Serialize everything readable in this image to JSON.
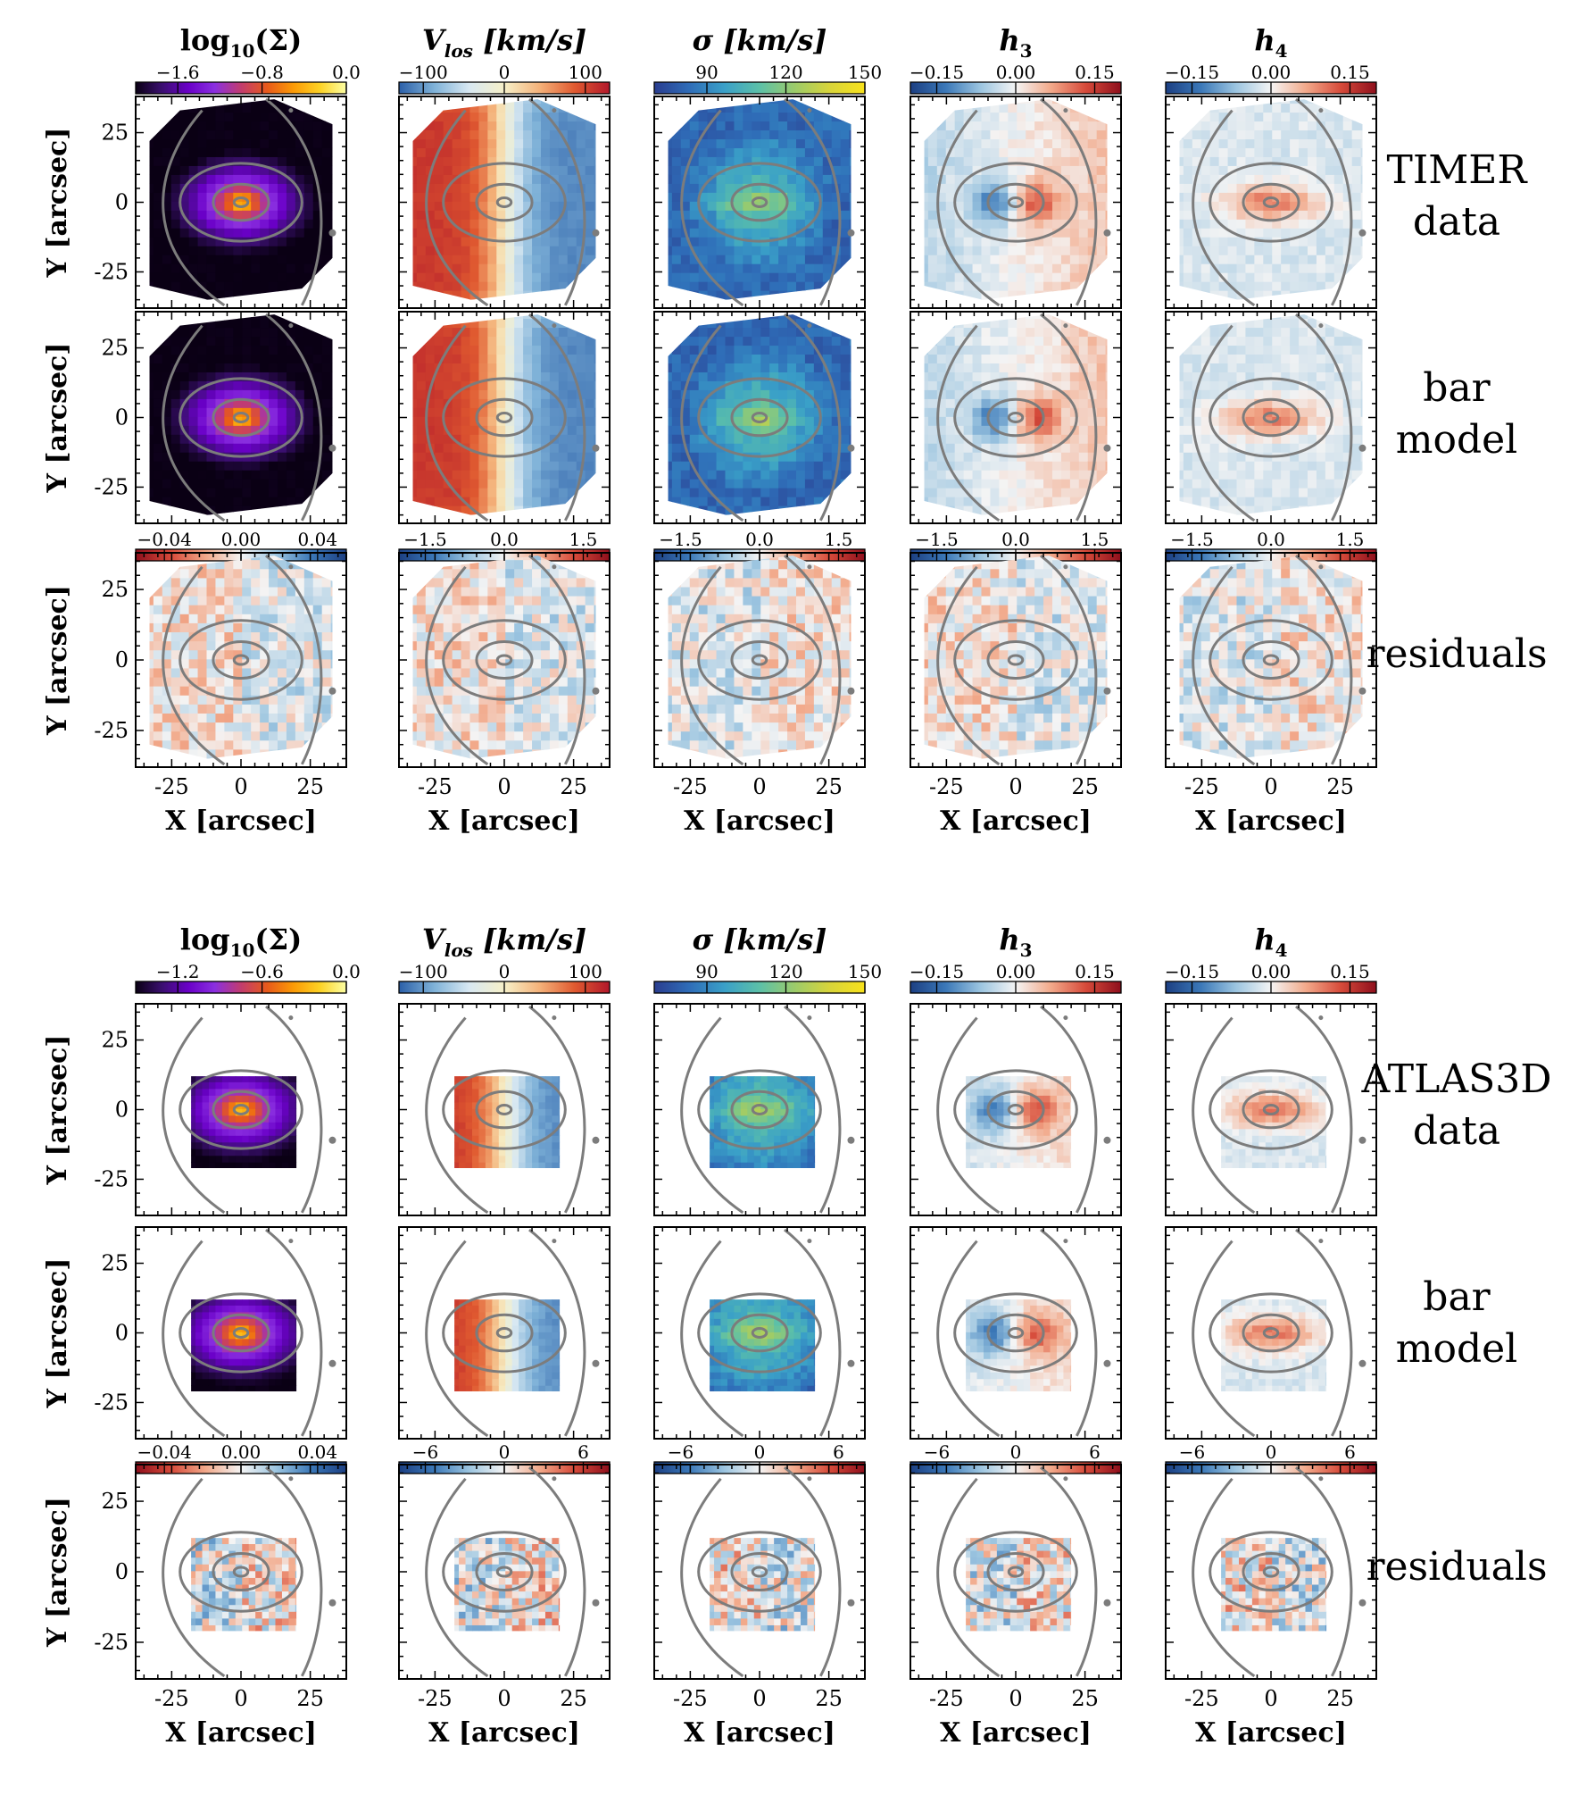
{
  "figure": {
    "x_axis_label": "X [arcsec]",
    "y_axis_label": "Y [arcsec]",
    "axis_ticks": [
      "-25",
      "0",
      "25"
    ],
    "axis_tick_values": [
      -25,
      0,
      25
    ],
    "axis_range": [
      -38,
      38
    ],
    "colormaps": {
      "surface": [
        "#0a0014",
        "#3b0f70",
        "#6a00c8",
        "#8a2fe0",
        "#c23c6e",
        "#e85a1a",
        "#fb9b06",
        "#fcd225",
        "#fcffa4"
      ],
      "velocity": [
        "#2b5fa8",
        "#7fb2d8",
        "#d8e8f2",
        "#f6f0c8",
        "#f4b27a",
        "#e05a30",
        "#b2182b"
      ],
      "dispersion": [
        "#2a3d8f",
        "#2f6db8",
        "#3aa0c8",
        "#5cc0a8",
        "#9ccb6a",
        "#d8d43a",
        "#f8e21b"
      ],
      "diverging": [
        "#1c3f82",
        "#3b78b8",
        "#9cc5e0",
        "#f4f4f4",
        "#f2a98a",
        "#d64a3a",
        "#8e0f1c"
      ],
      "diverging_reversed": [
        "#8e0f1c",
        "#d64a3a",
        "#f2a98a",
        "#f4f4f4",
        "#9cc5e0",
        "#3b78b8",
        "#1c3f82"
      ],
      "contour": "#7c7c7c"
    }
  },
  "chart_data": [
    {
      "type": "heatmap",
      "block": "TIMER",
      "coverage": "full",
      "columns": [
        {
          "title": "log10(Σ)",
          "colormap": "surface",
          "range": [
            -2.0,
            0.0
          ],
          "ticks": [
            "−1.6",
            "−0.8",
            "0.0"
          ],
          "tick_values": [
            -1.6,
            -0.8,
            0.0
          ]
        },
        {
          "title": "Vlos [km/s]",
          "colormap": "velocity",
          "range": [
            -130,
            130
          ],
          "ticks": [
            "−100",
            "0",
            "100"
          ],
          "tick_values": [
            -100,
            0,
            100
          ]
        },
        {
          "title": "σ [km/s]",
          "colormap": "dispersion",
          "range": [
            70,
            150
          ],
          "ticks": [
            "90",
            "120",
            "150"
          ],
          "tick_values": [
            90,
            120,
            150
          ]
        },
        {
          "title": "h3",
          "colormap": "diverging",
          "range": [
            -0.2,
            0.2
          ],
          "ticks": [
            "−0.15",
            "0.00",
            "0.15"
          ],
          "tick_values": [
            -0.15,
            0.0,
            0.15
          ]
        },
        {
          "title": "h4",
          "colormap": "diverging",
          "range": [
            -0.2,
            0.2
          ],
          "ticks": [
            "−0.15",
            "0.00",
            "0.15"
          ],
          "tick_values": [
            -0.15,
            0.0,
            0.15
          ]
        }
      ],
      "residual_columns": [
        {
          "colormap": "diverging_reversed",
          "range": [
            -0.055,
            0.055
          ],
          "ticks": [
            "−0.04",
            "0.00",
            "0.04"
          ],
          "tick_values": [
            -0.04,
            0.0,
            0.04
          ]
        },
        {
          "colormap": "diverging",
          "range": [
            -2.0,
            2.0
          ],
          "ticks": [
            "−1.5",
            "0.0",
            "1.5"
          ],
          "tick_values": [
            -1.5,
            0.0,
            1.5
          ]
        },
        {
          "colormap": "diverging",
          "range": [
            -2.0,
            2.0
          ],
          "ticks": [
            "−1.5",
            "0.0",
            "1.5"
          ],
          "tick_values": [
            -1.5,
            0.0,
            1.5
          ]
        },
        {
          "colormap": "diverging",
          "range": [
            -2.0,
            2.0
          ],
          "ticks": [
            "−1.5",
            "0.0",
            "1.5"
          ],
          "tick_values": [
            -1.5,
            0.0,
            1.5
          ]
        },
        {
          "colormap": "diverging",
          "range": [
            -2.0,
            2.0
          ],
          "ticks": [
            "−1.5",
            "0.0",
            "1.5"
          ],
          "tick_values": [
            -1.5,
            0.0,
            1.5
          ]
        }
      ],
      "row_labels": [
        [
          "TIMER",
          "data"
        ],
        [
          "bar",
          "model"
        ],
        [
          "residuals"
        ]
      ]
    },
    {
      "type": "heatmap",
      "block": "ATLAS3D",
      "coverage": "partial",
      "columns": [
        {
          "title": "log10(Σ)",
          "colormap": "surface",
          "range": [
            -1.5,
            0.0
          ],
          "ticks": [
            "−1.2",
            "−0.6",
            "0.0"
          ],
          "tick_values": [
            -1.2,
            -0.6,
            0.0
          ]
        },
        {
          "title": "Vlos [km/s]",
          "colormap": "velocity",
          "range": [
            -130,
            130
          ],
          "ticks": [
            "−100",
            "0",
            "100"
          ],
          "tick_values": [
            -100,
            0,
            100
          ]
        },
        {
          "title": "σ [km/s]",
          "colormap": "dispersion",
          "range": [
            70,
            150
          ],
          "ticks": [
            "90",
            "120",
            "150"
          ],
          "tick_values": [
            90,
            120,
            150
          ]
        },
        {
          "title": "h3",
          "colormap": "diverging",
          "range": [
            -0.2,
            0.2
          ],
          "ticks": [
            "−0.15",
            "0.00",
            "0.15"
          ],
          "tick_values": [
            -0.15,
            0.0,
            0.15
          ]
        },
        {
          "title": "h4",
          "colormap": "diverging",
          "range": [
            -0.2,
            0.2
          ],
          "ticks": [
            "−0.15",
            "0.00",
            "0.15"
          ],
          "tick_values": [
            -0.15,
            0.0,
            0.15
          ]
        }
      ],
      "residual_columns": [
        {
          "colormap": "diverging_reversed",
          "range": [
            -0.055,
            0.055
          ],
          "ticks": [
            "−0.04",
            "0.00",
            "0.04"
          ],
          "tick_values": [
            -0.04,
            0.0,
            0.04
          ]
        },
        {
          "colormap": "diverging",
          "range": [
            -8,
            8
          ],
          "ticks": [
            "−6",
            "0",
            "6"
          ],
          "tick_values": [
            -6,
            0,
            6
          ]
        },
        {
          "colormap": "diverging",
          "range": [
            -8,
            8
          ],
          "ticks": [
            "−6",
            "0",
            "6"
          ],
          "tick_values": [
            -6,
            0,
            6
          ]
        },
        {
          "colormap": "diverging",
          "range": [
            -8,
            8
          ],
          "ticks": [
            "−6",
            "0",
            "6"
          ],
          "tick_values": [
            -6,
            0,
            6
          ]
        },
        {
          "colormap": "diverging",
          "range": [
            -8,
            8
          ],
          "ticks": [
            "−6",
            "0",
            "6"
          ],
          "tick_values": [
            -6,
            0,
            6
          ]
        }
      ],
      "row_labels": [
        [
          "ATLAS3D",
          "data"
        ],
        [
          "bar",
          "model"
        ],
        [
          "residuals"
        ]
      ]
    }
  ]
}
